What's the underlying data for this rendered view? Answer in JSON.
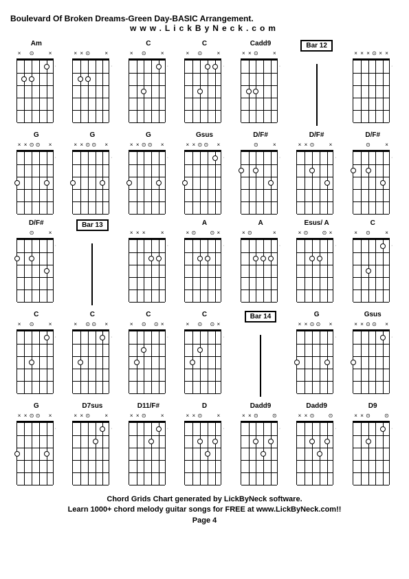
{
  "title": "Boulevard Of Broken Dreams-Green Day-BASIC Arrangement.",
  "url": "www.LickByNeck.com",
  "footer_line1": "Chord Grids Chart generated by LickByNeck software.",
  "footer_line2": "Learn 1000+ chord melody guitar songs for FREE at www.LickByNeck.com!!",
  "page_label": "Page 4",
  "colors": {
    "bg": "#ffffff",
    "fg": "#000000",
    "side_dot": "#666666"
  },
  "diagram": {
    "width": 54,
    "height": 90,
    "frets": 5,
    "strings": 6,
    "string_spacing": 10.8,
    "fret_spacing": 18
  },
  "cells": [
    [
      {
        "type": "chord",
        "label": "Am",
        "top": [
          "x",
          "",
          "o",
          "",
          "",
          "x"
        ],
        "dots": [
          [
            2,
            1
          ],
          [
            4,
            2
          ],
          [
            5,
            2
          ]
        ]
      },
      {
        "type": "chord",
        "label": "",
        "top": [
          "x",
          "x",
          "o",
          "",
          "",
          "x"
        ],
        "dots": [
          [
            4,
            2
          ],
          [
            5,
            2
          ]
        ]
      },
      {
        "type": "chord",
        "label": "C",
        "top": [
          "x",
          "",
          "o",
          "",
          "",
          "x"
        ],
        "dots": [
          [
            2,
            1
          ],
          [
            4,
            3
          ]
        ]
      },
      {
        "type": "chord",
        "label": "C",
        "top": [
          "x",
          "",
          "o",
          "",
          "",
          "x"
        ],
        "dots": [
          [
            2,
            1
          ],
          [
            3,
            1
          ],
          [
            4,
            3
          ]
        ]
      },
      {
        "type": "chord",
        "label": "Cadd9",
        "top": [
          "x",
          "x",
          "o",
          "",
          "",
          "x"
        ],
        "dots": [
          [
            5,
            3
          ],
          [
            4,
            3
          ]
        ]
      },
      {
        "type": "bar",
        "label": "Bar 12"
      },
      {
        "type": "chord",
        "label": "",
        "top": [
          "x",
          "x",
          "x",
          "o",
          "x",
          "x"
        ],
        "dots": []
      }
    ],
    [
      {
        "type": "chord",
        "label": "G",
        "top": [
          "x",
          "x",
          "o",
          "o",
          "",
          "x"
        ],
        "dots": [
          [
            6,
            3
          ],
          [
            2,
            3
          ]
        ]
      },
      {
        "type": "chord",
        "label": "G",
        "top": [
          "x",
          "x",
          "o",
          "o",
          "",
          "x"
        ],
        "dots": [
          [
            6,
            3
          ],
          [
            2,
            3
          ]
        ]
      },
      {
        "type": "chord",
        "label": "G",
        "top": [
          "x",
          "x",
          "o",
          "o",
          "",
          "x"
        ],
        "dots": [
          [
            2,
            3
          ],
          [
            6,
            3
          ]
        ]
      },
      {
        "type": "chord",
        "label": "Gsus",
        "top": [
          "x",
          "x",
          "o",
          "o",
          "",
          "x"
        ],
        "dots": [
          [
            6,
            3
          ],
          [
            2,
            1
          ]
        ]
      },
      {
        "type": "chord",
        "label": "D/F#",
        "top": [
          "",
          "",
          "o",
          "",
          "",
          "x"
        ],
        "dots": [
          [
            6,
            2
          ],
          [
            4,
            2
          ],
          [
            2,
            3
          ]
        ]
      },
      {
        "type": "chord",
        "label": "D/F#",
        "top": [
          "x",
          "x",
          "o",
          "",
          "",
          "x"
        ],
        "dots": [
          [
            4,
            2
          ],
          [
            2,
            3
          ]
        ]
      },
      {
        "type": "chord",
        "label": "D/F#",
        "top": [
          "",
          "",
          "o",
          "",
          "",
          "x"
        ],
        "dots": [
          [
            6,
            2
          ],
          [
            4,
            2
          ],
          [
            2,
            3
          ]
        ]
      }
    ],
    [
      {
        "type": "chord",
        "label": "D/F#",
        "top": [
          "",
          "",
          "o",
          "",
          "",
          "x"
        ],
        "dots": [
          [
            6,
            2
          ],
          [
            4,
            2
          ],
          [
            2,
            3
          ]
        ]
      },
      {
        "type": "bar",
        "label": "Bar 13"
      },
      {
        "type": "chord",
        "label": "",
        "top": [
          "x",
          "x",
          "x",
          "",
          "",
          "x"
        ],
        "dots": [
          [
            2,
            2
          ],
          [
            3,
            2
          ]
        ]
      },
      {
        "type": "chord",
        "label": "A",
        "top": [
          "x",
          "o",
          "",
          "",
          "o",
          "x"
        ],
        "dots": [
          [
            3,
            2
          ],
          [
            4,
            2
          ]
        ]
      },
      {
        "type": "chord",
        "label": "A",
        "top": [
          "x",
          "o",
          "",
          "",
          "",
          "x"
        ],
        "dots": [
          [
            2,
            2
          ],
          [
            3,
            2
          ],
          [
            4,
            2
          ]
        ]
      },
      {
        "type": "chord",
        "label": "Esus/ A",
        "top": [
          "x",
          "o",
          "",
          "",
          "o",
          "x"
        ],
        "dots": [
          [
            3,
            2
          ],
          [
            4,
            2
          ]
        ]
      },
      {
        "type": "chord",
        "label": "C",
        "top": [
          "x",
          "",
          "o",
          "",
          "",
          "x"
        ],
        "dots": [
          [
            2,
            1
          ],
          [
            4,
            3
          ]
        ]
      }
    ],
    [
      {
        "type": "chord",
        "label": "C",
        "top": [
          "x",
          "",
          "o",
          "",
          "",
          "x"
        ],
        "dots": [
          [
            2,
            1
          ],
          [
            4,
            3
          ]
        ]
      },
      {
        "type": "chord",
        "label": "C",
        "top": [
          "x",
          "",
          "o",
          "o",
          "",
          "x"
        ],
        "dots": [
          [
            2,
            1
          ],
          [
            5,
            3
          ]
        ]
      },
      {
        "type": "chord",
        "label": "C",
        "top": [
          "x",
          "",
          "o",
          "",
          "o",
          "x"
        ],
        "dots": [
          [
            5,
            3
          ],
          [
            4,
            2
          ]
        ]
      },
      {
        "type": "chord",
        "label": "C",
        "top": [
          "x",
          "",
          "o",
          "",
          "o",
          "x"
        ],
        "dots": [
          [
            5,
            3
          ],
          [
            4,
            2
          ]
        ]
      },
      {
        "type": "bar",
        "label": "Bar 14"
      },
      {
        "type": "chord",
        "label": "G",
        "top": [
          "x",
          "x",
          "o",
          "o",
          "",
          "x"
        ],
        "dots": [
          [
            6,
            3
          ],
          [
            2,
            3
          ]
        ]
      },
      {
        "type": "chord",
        "label": "Gsus",
        "top": [
          "x",
          "x",
          "o",
          "o",
          "",
          "x"
        ],
        "dots": [
          [
            6,
            3
          ],
          [
            2,
            1
          ]
        ]
      }
    ],
    [
      {
        "type": "chord",
        "label": "G",
        "top": [
          "x",
          "x",
          "o",
          "o",
          "",
          "x"
        ],
        "dots": [
          [
            6,
            3
          ],
          [
            2,
            3
          ]
        ]
      },
      {
        "type": "chord",
        "label": "D7sus",
        "top": [
          "x",
          "x",
          "o",
          "",
          "",
          "x"
        ],
        "dots": [
          [
            3,
            2
          ],
          [
            2,
            1
          ]
        ]
      },
      {
        "type": "chord",
        "label": "D11/F#",
        "top": [
          "x",
          "x",
          "o",
          "",
          "",
          "x"
        ],
        "dots": [
          [
            3,
            2
          ],
          [
            2,
            1
          ]
        ]
      },
      {
        "type": "chord",
        "label": "D",
        "top": [
          "x",
          "x",
          "o",
          "",
          "",
          "x"
        ],
        "dots": [
          [
            4,
            2
          ],
          [
            3,
            3
          ],
          [
            2,
            2
          ]
        ]
      },
      {
        "type": "chord",
        "label": "Dadd9",
        "top": [
          "x",
          "x",
          "o",
          "",
          "",
          "o"
        ],
        "dots": [
          [
            4,
            2
          ],
          [
            3,
            3
          ],
          [
            2,
            2
          ]
        ]
      },
      {
        "type": "chord",
        "label": "Dadd9",
        "top": [
          "x",
          "x",
          "o",
          "",
          "",
          "o"
        ],
        "dots": [
          [
            4,
            2
          ],
          [
            3,
            3
          ],
          [
            2,
            2
          ]
        ]
      },
      {
        "type": "chord",
        "label": "D9",
        "top": [
          "x",
          "x",
          "o",
          "",
          "",
          "o"
        ],
        "dots": [
          [
            4,
            2
          ],
          [
            2,
            1
          ]
        ]
      }
    ]
  ]
}
